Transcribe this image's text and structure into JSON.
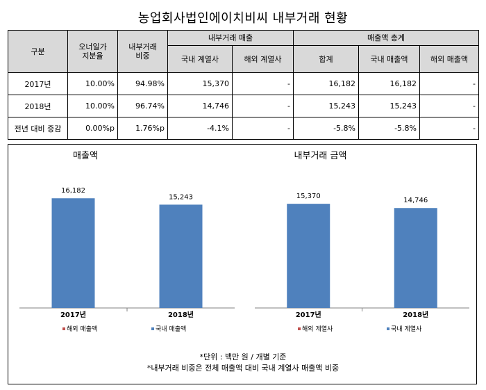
{
  "title": "농업회사법인에이치비씨  내부거래 현황",
  "table": {
    "headers": {
      "category": "구분",
      "owner_share": "오너일가\n지분율",
      "internal_ratio": "내부거래\n비중",
      "internal_sales": "내부거래 매출",
      "domestic_affiliate": "국내\n계열사",
      "overseas_affiliate": "해외\n계열사",
      "sales_total": "매출액 총계",
      "sum": "합계",
      "domestic_sales": "국내\n매출액",
      "overseas_sales": "해외\n매출액"
    },
    "rows": [
      {
        "label": "2017년",
        "owner_share": "10.00%",
        "internal_ratio": "94.98%",
        "domestic_affiliate": "15,370",
        "overseas_affiliate": "-",
        "sum": "16,182",
        "domestic_sales": "16,182",
        "overseas_sales": "-"
      },
      {
        "label": "2018년",
        "owner_share": "10.00%",
        "internal_ratio": "96.74%",
        "domestic_affiliate": "14,746",
        "overseas_affiliate": "-",
        "sum": "15,243",
        "domestic_sales": "15,243",
        "overseas_sales": "-"
      },
      {
        "label": "전년 대비 증감",
        "owner_share": "0.00%p",
        "internal_ratio": "1.76%p",
        "domestic_affiliate": "-4.1%",
        "overseas_affiliate": "-",
        "sum": "-5.8%",
        "domestic_sales": "-5.8%",
        "overseas_sales": "-"
      }
    ]
  },
  "chart_data": [
    {
      "type": "bar",
      "title": "매출액",
      "categories": [
        "2017년",
        "2018년"
      ],
      "ylim": [
        0,
        20000
      ],
      "series": [
        {
          "name": "해외 매출액",
          "values": [
            0,
            0
          ],
          "color": "#c0504d"
        },
        {
          "name": "국내 매출액",
          "values": [
            16182,
            15243
          ],
          "color": "#4f81bd"
        }
      ],
      "data_labels": [
        "16,182",
        "15,243"
      ],
      "legend": "bottom"
    },
    {
      "type": "bar",
      "title": "내부거래 금액",
      "categories": [
        "2017년",
        "2018년"
      ],
      "ylim": [
        0,
        20000
      ],
      "series": [
        {
          "name": "해외 계열사",
          "values": [
            0,
            0
          ],
          "color": "#c0504d"
        },
        {
          "name": "국내 계열사",
          "values": [
            15370,
            14746
          ],
          "color": "#4f81bd"
        }
      ],
      "data_labels": [
        "15,370",
        "14,746"
      ],
      "legend": "bottom"
    }
  ],
  "notes": [
    "*단위 : 백만 원 / 개별 기준",
    "*내부거래 비중은 전체 매출액 대비 국내 계열사 매출액 비중"
  ]
}
